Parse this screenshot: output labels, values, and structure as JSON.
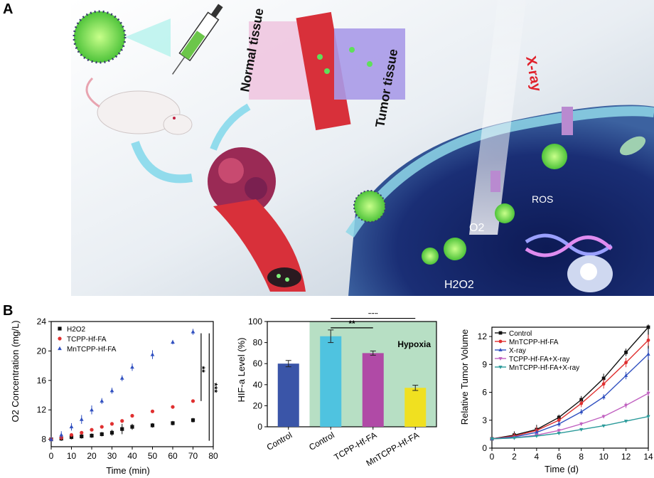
{
  "panels": {
    "a": "A",
    "b": "B"
  },
  "illustration": {
    "label_normal": "Normal tissue",
    "label_tumor": "Tumor tissue",
    "label_xray": "X-ray",
    "label_ros": "ROS",
    "label_o2": "O2",
    "label_h2o2": "H2O2"
  },
  "chart_data": [
    {
      "type": "scatter",
      "ylabel": "O2 Concentration (mg/L)",
      "xlabel": "Time (min)",
      "xlim": [
        0,
        80
      ],
      "ylim": [
        7,
        24
      ],
      "xticks": [
        0,
        10,
        20,
        30,
        40,
        50,
        60,
        70,
        80
      ],
      "yticks": [
        8,
        12,
        16,
        20,
        24
      ],
      "series": [
        {
          "name": "H2O2",
          "color": "#111111",
          "marker": "square",
          "x": [
            0,
            5,
            10,
            15,
            20,
            25,
            30,
            35,
            40,
            50,
            60,
            70
          ],
          "y": [
            8.0,
            8.1,
            8.3,
            8.4,
            8.5,
            8.7,
            8.9,
            9.4,
            9.7,
            9.9,
            10.2,
            10.6
          ],
          "err": [
            0.3,
            0.3,
            0.3,
            0.3,
            0.3,
            0.3,
            0.4,
            0.7,
            0.4,
            0.3,
            0.3,
            0.3
          ]
        },
        {
          "name": "TCPP-Hf-FA",
          "color": "#e03030",
          "marker": "circle",
          "x": [
            0,
            5,
            10,
            15,
            20,
            25,
            30,
            35,
            40,
            50,
            60,
            70
          ],
          "y": [
            8.0,
            8.2,
            8.6,
            8.9,
            9.3,
            9.7,
            10.1,
            10.5,
            11.2,
            11.8,
            12.4,
            13.2
          ],
          "err": [
            0.2,
            0.2,
            0.2,
            0.2,
            0.2,
            0.2,
            0.2,
            0.2,
            0.2,
            0.2,
            0.2,
            0.2
          ]
        },
        {
          "name": "MnTCPP-Hf-FA",
          "color": "#3050c0",
          "marker": "triangle",
          "x": [
            0,
            5,
            10,
            15,
            20,
            25,
            30,
            35,
            40,
            50,
            60,
            70
          ],
          "y": [
            8.0,
            8.6,
            9.7,
            10.7,
            12.0,
            13.2,
            14.6,
            16.3,
            17.8,
            19.5,
            21.2,
            22.6
          ],
          "err": [
            0.3,
            0.5,
            0.5,
            0.6,
            0.6,
            0.4,
            0.4,
            0.4,
            0.5,
            0.6,
            0.3,
            0.4
          ]
        }
      ],
      "significance": [
        "**",
        "***"
      ]
    },
    {
      "type": "bar",
      "ylabel": "HIF-a Level (%)",
      "categories": [
        "Control",
        "Control",
        "TCPP-Hf-FA",
        "MnTCPP-Hf-FA"
      ],
      "values": [
        60,
        86,
        70,
        37
      ],
      "err": [
        3,
        6,
        2,
        2.5
      ],
      "colors": [
        "#3a55a8",
        "#4fc3e0",
        "#b04aa6",
        "#f0e020"
      ],
      "ylim": [
        0,
        100
      ],
      "yticks": [
        0,
        20,
        40,
        60,
        80,
        100
      ],
      "region_label": "Hypoxia",
      "region_color": "#b7dfc4",
      "significance": [
        "**",
        "***"
      ]
    },
    {
      "type": "line",
      "ylabel": "Relative Tumor Volume",
      "xlabel": "Time (d)",
      "xlim": [
        0,
        14
      ],
      "ylim": [
        0,
        13
      ],
      "xticks": [
        0,
        2,
        4,
        6,
        8,
        10,
        12,
        14
      ],
      "yticks": [
        0,
        3,
        6,
        9,
        12
      ],
      "x": [
        0,
        2,
        4,
        6,
        8,
        10,
        12,
        14
      ],
      "series": [
        {
          "name": "Control",
          "color": "#111111",
          "marker": "square",
          "y": [
            1.0,
            1.4,
            2.0,
            3.3,
            5.2,
            7.5,
            10.3,
            13.0
          ],
          "err": [
            0.1,
            0.4,
            0.5,
            0.3,
            0.4,
            0.5,
            0.4,
            0.3
          ]
        },
        {
          "name": "MnTCPP-Hf-FA",
          "color": "#e03030",
          "marker": "circle",
          "y": [
            1.0,
            1.3,
            1.9,
            3.0,
            4.8,
            6.9,
            9.2,
            11.6
          ],
          "err": [
            0.1,
            0.3,
            0.4,
            0.3,
            0.4,
            0.5,
            0.5,
            0.6
          ]
        },
        {
          "name": "X-ray",
          "color": "#3050c0",
          "marker": "triangle",
          "y": [
            1.0,
            1.2,
            1.7,
            2.6,
            3.9,
            5.5,
            7.8,
            10.1
          ],
          "err": [
            0.1,
            0.2,
            0.3,
            0.3,
            0.3,
            0.3,
            0.4,
            0.6
          ]
        },
        {
          "name": "TCPP-Hf-FA+X-ray",
          "color": "#c060c0",
          "marker": "tri-down",
          "y": [
            1.0,
            1.1,
            1.4,
            1.9,
            2.6,
            3.4,
            4.6,
            5.9
          ],
          "err": [
            0.1,
            0.2,
            0.2,
            0.2,
            0.2,
            0.2,
            0.3,
            0.3
          ]
        },
        {
          "name": "MnTCPP-Hf-FA+X-ray",
          "color": "#2a9a9a",
          "marker": "tri-down",
          "y": [
            1.0,
            1.1,
            1.3,
            1.6,
            2.0,
            2.4,
            2.9,
            3.4
          ],
          "err": [
            0.1,
            0.1,
            0.1,
            0.1,
            0.1,
            0.1,
            0.1,
            0.1
          ]
        }
      ]
    }
  ]
}
